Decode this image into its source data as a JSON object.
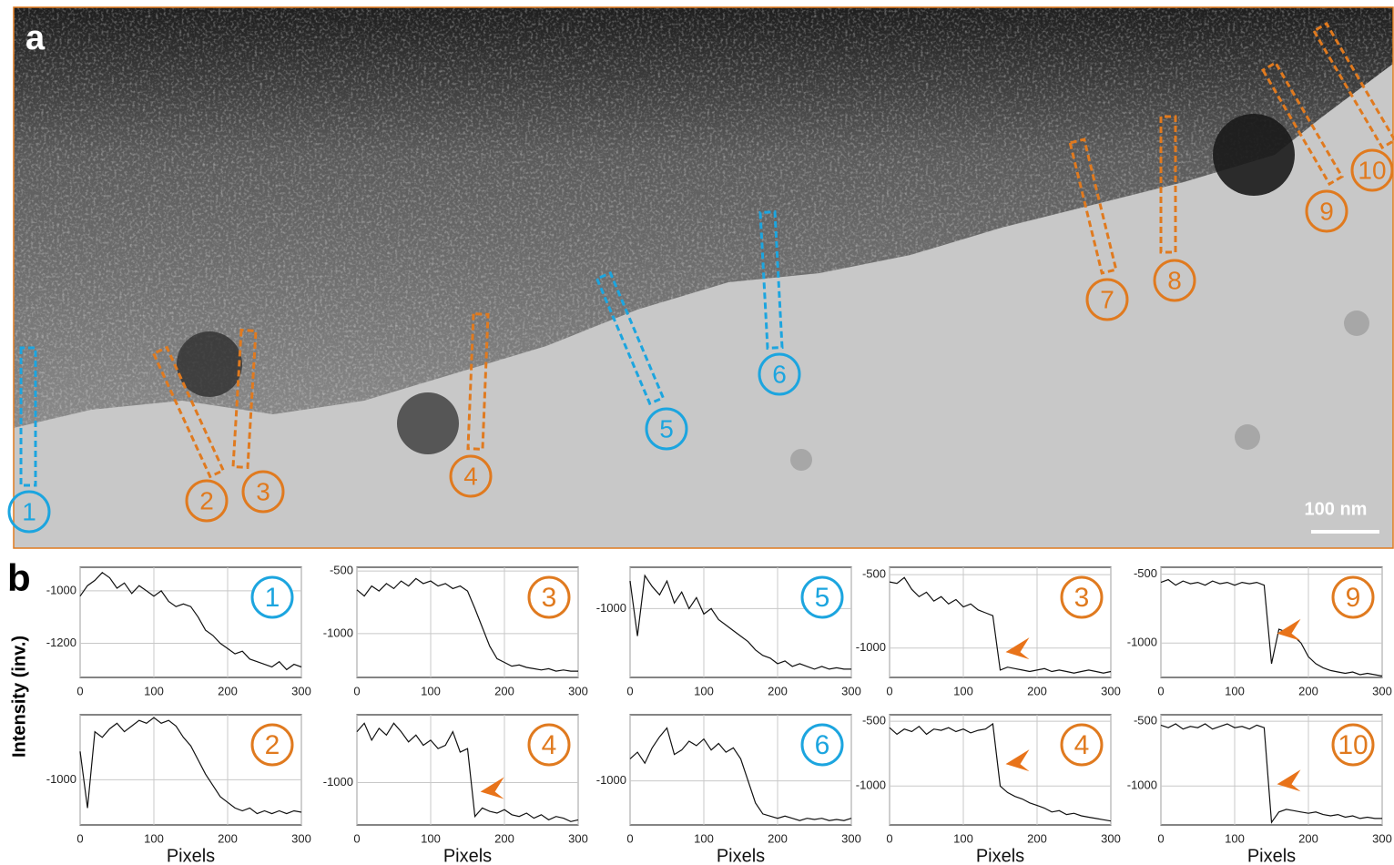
{
  "panel_a": {
    "label": "a",
    "scale_bar": "100 nm",
    "markers": [
      {
        "label": "1",
        "color": "#1ca5df"
      },
      {
        "label": "2",
        "color": "#e07a1f"
      },
      {
        "label": "3",
        "color": "#e07a1f"
      },
      {
        "label": "4",
        "color": "#e07a1f"
      },
      {
        "label": "5",
        "color": "#1ca5df"
      },
      {
        "label": "6",
        "color": "#1ca5df"
      },
      {
        "label": "7",
        "color": "#e07a1f"
      },
      {
        "label": "8",
        "color": "#e07a1f"
      },
      {
        "label": "9",
        "color": "#e07a1f"
      },
      {
        "label": "10",
        "color": "#e07a1f"
      }
    ]
  },
  "panel_b": {
    "label": "b",
    "y_label": "Intensity (inv.)"
  },
  "chart_data": [
    {
      "type": "line",
      "badge": "1",
      "badge_color": "#1ca5df",
      "color": "#111111",
      "grid": true,
      "arrow": false,
      "x": [
        0,
        10,
        20,
        30,
        40,
        50,
        60,
        70,
        80,
        90,
        100,
        110,
        120,
        130,
        140,
        150,
        160,
        170,
        180,
        190,
        200,
        210,
        220,
        230,
        240,
        250,
        260,
        270,
        280,
        290,
        300
      ],
      "values": [
        -1020,
        -980,
        -960,
        -930,
        -950,
        -990,
        -970,
        -1010,
        -980,
        -1000,
        -1020,
        -1000,
        -1040,
        -1060,
        -1050,
        -1060,
        -1100,
        -1150,
        -1170,
        -1200,
        -1220,
        -1240,
        -1230,
        -1260,
        -1270,
        -1280,
        -1290,
        -1270,
        -1300,
        -1280,
        -1290
      ],
      "xlim": [
        0,
        300
      ],
      "xticks": [
        0,
        100,
        200,
        300
      ],
      "ylim": [
        -1330,
        -910
      ],
      "yticks": [
        -1000,
        -1200
      ]
    },
    {
      "type": "line",
      "badge": "2",
      "badge_color": "#e07a1f",
      "color": "#111111",
      "grid": true,
      "arrow": false,
      "xlabel": "Pixels",
      "x": [
        0,
        10,
        20,
        30,
        40,
        50,
        60,
        70,
        80,
        90,
        100,
        110,
        120,
        130,
        140,
        150,
        160,
        170,
        180,
        190,
        200,
        210,
        220,
        230,
        240,
        250,
        260,
        270,
        280,
        290,
        300
      ],
      "values": [
        -900,
        -1100,
        -830,
        -850,
        -820,
        -800,
        -830,
        -810,
        -790,
        -800,
        -780,
        -800,
        -790,
        -810,
        -850,
        -880,
        -930,
        -980,
        -1020,
        -1060,
        -1080,
        -1100,
        -1110,
        -1100,
        -1120,
        -1110,
        -1120,
        -1110,
        -1120,
        -1110,
        -1115
      ],
      "xlim": [
        0,
        300
      ],
      "xticks": [
        0,
        100,
        200,
        300
      ],
      "ylim": [
        -1160,
        -770
      ],
      "yticks": [
        -1000
      ]
    },
    {
      "type": "line",
      "badge": "3",
      "badge_color": "#e07a1f",
      "color": "#111111",
      "grid": true,
      "arrow": false,
      "x": [
        0,
        10,
        20,
        30,
        40,
        50,
        60,
        70,
        80,
        90,
        100,
        110,
        120,
        130,
        140,
        150,
        160,
        170,
        180,
        190,
        200,
        210,
        220,
        230,
        240,
        250,
        260,
        270,
        280,
        290,
        300
      ],
      "values": [
        -650,
        -700,
        -620,
        -660,
        -600,
        -640,
        -580,
        -620,
        -560,
        -600,
        -580,
        -620,
        -600,
        -640,
        -620,
        -660,
        -800,
        -950,
        -1100,
        -1200,
        -1230,
        -1260,
        -1250,
        -1270,
        -1280,
        -1290,
        -1280,
        -1300,
        -1290,
        -1300,
        -1300
      ],
      "xlim": [
        0,
        300
      ],
      "xticks": [
        0,
        100,
        200,
        300
      ],
      "ylim": [
        -1350,
        -470
      ],
      "yticks": [
        -500,
        -1000
      ]
    },
    {
      "type": "line",
      "badge": "4",
      "badge_color": "#e07a1f",
      "color": "#111111",
      "grid": true,
      "arrow": true,
      "xlabel": "Pixels",
      "x": [
        0,
        10,
        20,
        30,
        40,
        50,
        60,
        70,
        80,
        90,
        100,
        110,
        120,
        130,
        140,
        150,
        160,
        170,
        180,
        190,
        200,
        210,
        220,
        230,
        240,
        250,
        260,
        270,
        280,
        290,
        300
      ],
      "values": [
        -700,
        -650,
        -750,
        -680,
        -720,
        -650,
        -700,
        -760,
        -720,
        -780,
        -750,
        -800,
        -780,
        -700,
        -820,
        -800,
        -1200,
        -1150,
        -1170,
        -1180,
        -1160,
        -1190,
        -1200,
        -1180,
        -1210,
        -1190,
        -1220,
        -1200,
        -1210,
        -1230,
        -1220
      ],
      "xlim": [
        0,
        300
      ],
      "xticks": [
        0,
        100,
        200,
        300
      ],
      "ylim": [
        -1250,
        -600
      ],
      "yticks": [
        -1000
      ]
    },
    {
      "type": "line",
      "badge": "5",
      "badge_color": "#1ca5df",
      "color": "#111111",
      "grid": true,
      "arrow": false,
      "x": [
        0,
        10,
        20,
        30,
        40,
        50,
        60,
        70,
        80,
        90,
        100,
        110,
        120,
        130,
        140,
        150,
        160,
        170,
        180,
        190,
        200,
        210,
        220,
        230,
        240,
        250,
        260,
        270,
        280,
        290,
        300
      ],
      "values": [
        -900,
        -1100,
        -880,
        -920,
        -950,
        -900,
        -980,
        -940,
        -1000,
        -960,
        -1020,
        -1000,
        -1040,
        -1060,
        -1080,
        -1100,
        -1120,
        -1150,
        -1170,
        -1180,
        -1200,
        -1190,
        -1210,
        -1200,
        -1210,
        -1220,
        -1210,
        -1220,
        -1215,
        -1220,
        -1220
      ],
      "xlim": [
        0,
        300
      ],
      "xticks": [
        0,
        100,
        200,
        300
      ],
      "ylim": [
        -1250,
        -850
      ],
      "yticks": [
        -1000
      ]
    },
    {
      "type": "line",
      "badge": "6",
      "badge_color": "#1ca5df",
      "color": "#111111",
      "grid": true,
      "arrow": false,
      "xlabel": "Pixels",
      "x": [
        0,
        10,
        20,
        30,
        40,
        50,
        60,
        70,
        80,
        90,
        100,
        110,
        120,
        130,
        140,
        150,
        160,
        170,
        180,
        190,
        200,
        210,
        220,
        230,
        240,
        250,
        260,
        270,
        280,
        290,
        300
      ],
      "values": [
        -900,
        -870,
        -920,
        -850,
        -800,
        -760,
        -880,
        -860,
        -820,
        -840,
        -810,
        -860,
        -830,
        -870,
        -850,
        -900,
        -1000,
        -1100,
        -1150,
        -1160,
        -1170,
        -1160,
        -1170,
        -1180,
        -1170,
        -1175,
        -1170,
        -1180,
        -1175,
        -1180,
        -1170
      ],
      "xlim": [
        0,
        300
      ],
      "xticks": [
        0,
        100,
        200,
        300
      ],
      "ylim": [
        -1200,
        -700
      ],
      "yticks": [
        -1000
      ]
    },
    {
      "type": "line",
      "badge": "3",
      "badge_color": "#e07a1f",
      "color": "#111111",
      "grid": true,
      "arrow": true,
      "x": [
        0,
        10,
        20,
        30,
        40,
        50,
        60,
        70,
        80,
        90,
        100,
        110,
        120,
        130,
        140,
        150,
        160,
        170,
        180,
        190,
        200,
        210,
        220,
        230,
        240,
        250,
        260,
        270,
        280,
        290,
        300
      ],
      "values": [
        -550,
        -560,
        -520,
        -600,
        -650,
        -620,
        -680,
        -650,
        -700,
        -670,
        -720,
        -700,
        -740,
        -760,
        -780,
        -1150,
        -1130,
        -1140,
        -1150,
        -1160,
        -1150,
        -1140,
        -1160,
        -1150,
        -1160,
        -1170,
        -1160,
        -1150,
        -1160,
        -1170,
        -1160
      ],
      "xlim": [
        0,
        300
      ],
      "xticks": [
        0,
        100,
        200,
        300
      ],
      "ylim": [
        -1200,
        -450
      ],
      "yticks": [
        -500,
        -1000
      ]
    },
    {
      "type": "line",
      "badge": "4",
      "badge_color": "#e07a1f",
      "color": "#111111",
      "grid": true,
      "arrow": true,
      "xlabel": "Pixels",
      "x": [
        0,
        10,
        20,
        30,
        40,
        50,
        60,
        70,
        80,
        90,
        100,
        110,
        120,
        130,
        140,
        150,
        160,
        170,
        180,
        190,
        200,
        210,
        220,
        230,
        240,
        250,
        260,
        270,
        280,
        290,
        300
      ],
      "values": [
        -550,
        -600,
        -560,
        -580,
        -540,
        -600,
        -560,
        -570,
        -550,
        -580,
        -560,
        -590,
        -570,
        -560,
        -520,
        -1000,
        -1050,
        -1080,
        -1100,
        -1130,
        -1150,
        -1170,
        -1200,
        -1190,
        -1220,
        -1210,
        -1230,
        -1240,
        -1250,
        -1260,
        -1270
      ],
      "xlim": [
        0,
        300
      ],
      "xticks": [
        0,
        100,
        200,
        300
      ],
      "ylim": [
        -1300,
        -450
      ],
      "yticks": [
        -500,
        -1000
      ]
    },
    {
      "type": "line",
      "badge": "9",
      "badge_color": "#e07a1f",
      "color": "#111111",
      "grid": true,
      "arrow": true,
      "x": [
        0,
        10,
        20,
        30,
        40,
        50,
        60,
        70,
        80,
        90,
        100,
        110,
        120,
        130,
        140,
        150,
        160,
        170,
        180,
        190,
        200,
        210,
        220,
        230,
        240,
        250,
        260,
        270,
        280,
        290,
        300
      ],
      "values": [
        -560,
        -540,
        -580,
        -550,
        -570,
        -560,
        -580,
        -550,
        -570,
        -560,
        -580,
        -560,
        -570,
        -560,
        -580,
        -1150,
        -900,
        -920,
        -950,
        -1000,
        -1100,
        -1150,
        -1180,
        -1200,
        -1210,
        -1220,
        -1210,
        -1230,
        -1220,
        -1230,
        -1240
      ],
      "xlim": [
        0,
        300
      ],
      "xticks": [
        0,
        100,
        200,
        300
      ],
      "ylim": [
        -1250,
        -450
      ],
      "yticks": [
        -500,
        -1000
      ]
    },
    {
      "type": "line",
      "badge": "10",
      "badge_color": "#e07a1f",
      "color": "#111111",
      "grid": true,
      "arrow": true,
      "xlabel": "Pixels",
      "x": [
        0,
        10,
        20,
        30,
        40,
        50,
        60,
        70,
        80,
        90,
        100,
        110,
        120,
        130,
        140,
        150,
        160,
        170,
        180,
        190,
        200,
        210,
        220,
        230,
        240,
        250,
        260,
        270,
        280,
        290,
        300
      ],
      "values": [
        -530,
        -550,
        -520,
        -560,
        -540,
        -550,
        -520,
        -560,
        -540,
        -520,
        -550,
        -540,
        -560,
        -530,
        -550,
        -1280,
        -1200,
        -1180,
        -1190,
        -1200,
        -1210,
        -1200,
        -1220,
        -1230,
        -1220,
        -1240,
        -1230,
        -1250,
        -1240,
        -1250,
        -1250
      ],
      "xlim": [
        0,
        300
      ],
      "xticks": [
        0,
        100,
        200,
        300
      ],
      "ylim": [
        -1300,
        -450
      ],
      "yticks": [
        -500,
        -1000
      ]
    }
  ]
}
